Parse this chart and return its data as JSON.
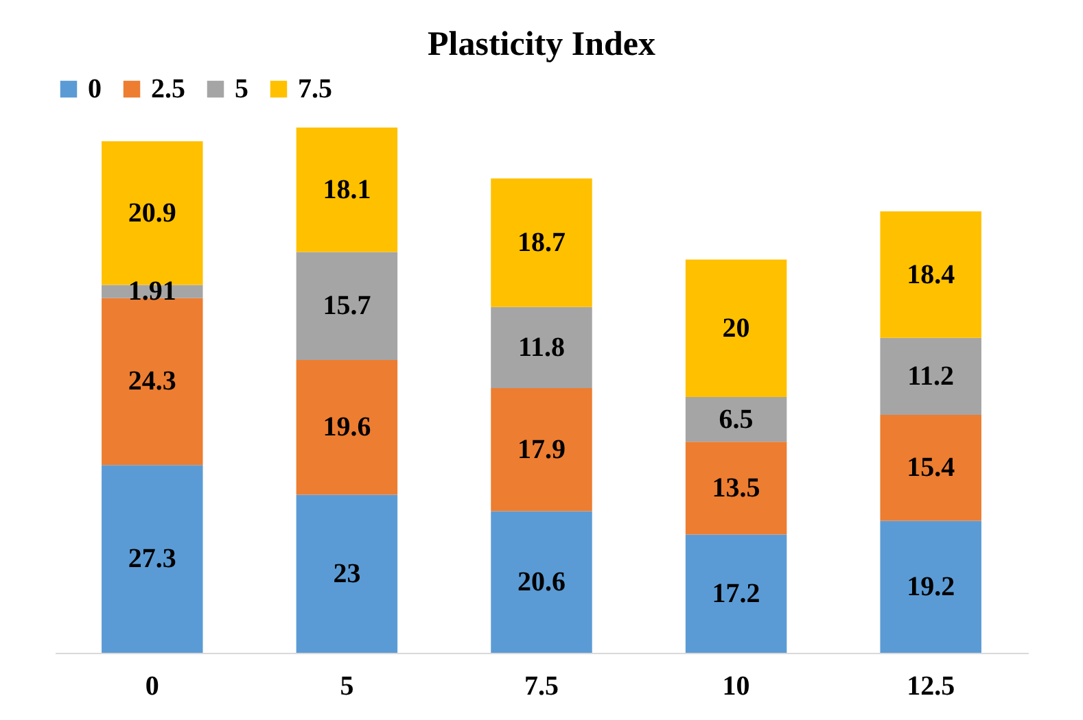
{
  "chart_data": {
    "type": "bar",
    "title": "Plasticity Index",
    "stacked": true,
    "data_labels": true,
    "legend": "top",
    "grid": false,
    "categories": [
      "0",
      "5",
      "7.5",
      "10",
      "12.5"
    ],
    "series": [
      {
        "name": "0",
        "color": "#5b9bd5",
        "values": [
          27.3,
          23,
          20.6,
          17.2,
          19.2
        ]
      },
      {
        "name": "2.5",
        "color": "#ed7d31",
        "values": [
          24.3,
          19.6,
          17.9,
          13.5,
          15.4
        ]
      },
      {
        "name": "5",
        "color": "#a5a5a5",
        "values": [
          1.91,
          15.7,
          11.8,
          6.5,
          11.2
        ]
      },
      {
        "name": "7.5",
        "color": "#ffc000",
        "values": [
          20.9,
          18.1,
          18.7,
          20,
          18.4
        ]
      }
    ]
  }
}
